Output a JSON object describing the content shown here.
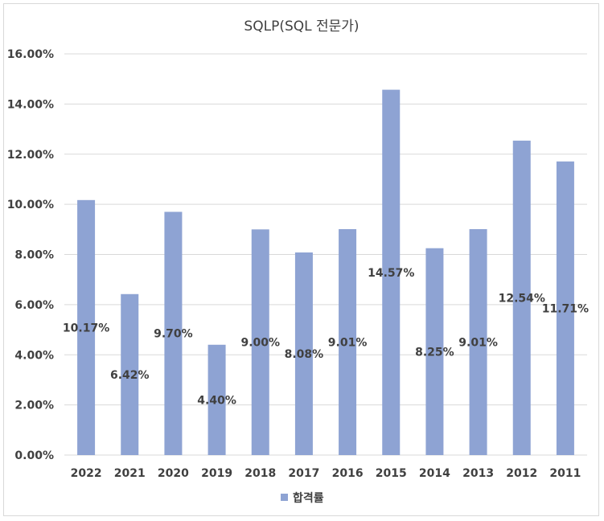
{
  "chart_data": {
    "type": "bar",
    "title": "SQLP(SQL 전문가)",
    "categories": [
      "2022",
      "2021",
      "2020",
      "2019",
      "2018",
      "2017",
      "2016",
      "2015",
      "2014",
      "2013",
      "2012",
      "2011"
    ],
    "series": [
      {
        "name": "합격률",
        "values": [
          10.17,
          6.42,
          9.7,
          4.4,
          9.0,
          8.08,
          9.01,
          14.57,
          8.25,
          9.01,
          12.54,
          11.71
        ],
        "data_labels": [
          "10.17%",
          "6.42%",
          "9.70%",
          "4.40%",
          "9.00%",
          "8.08%",
          "9.01%",
          "14.57%",
          "8.25%",
          "9.01%",
          "12.54%",
          "11.71%"
        ]
      }
    ],
    "y_ticks": [
      "0.00%",
      "2.00%",
      "4.00%",
      "6.00%",
      "8.00%",
      "10.00%",
      "12.00%",
      "14.00%",
      "16.00%"
    ],
    "ylim": [
      0,
      16
    ],
    "xlabel": "",
    "ylabel": "",
    "grid": true,
    "legend_position": "bottom",
    "bar_color": "#8ea3d3",
    "grid_color": "#d9d9d9"
  }
}
